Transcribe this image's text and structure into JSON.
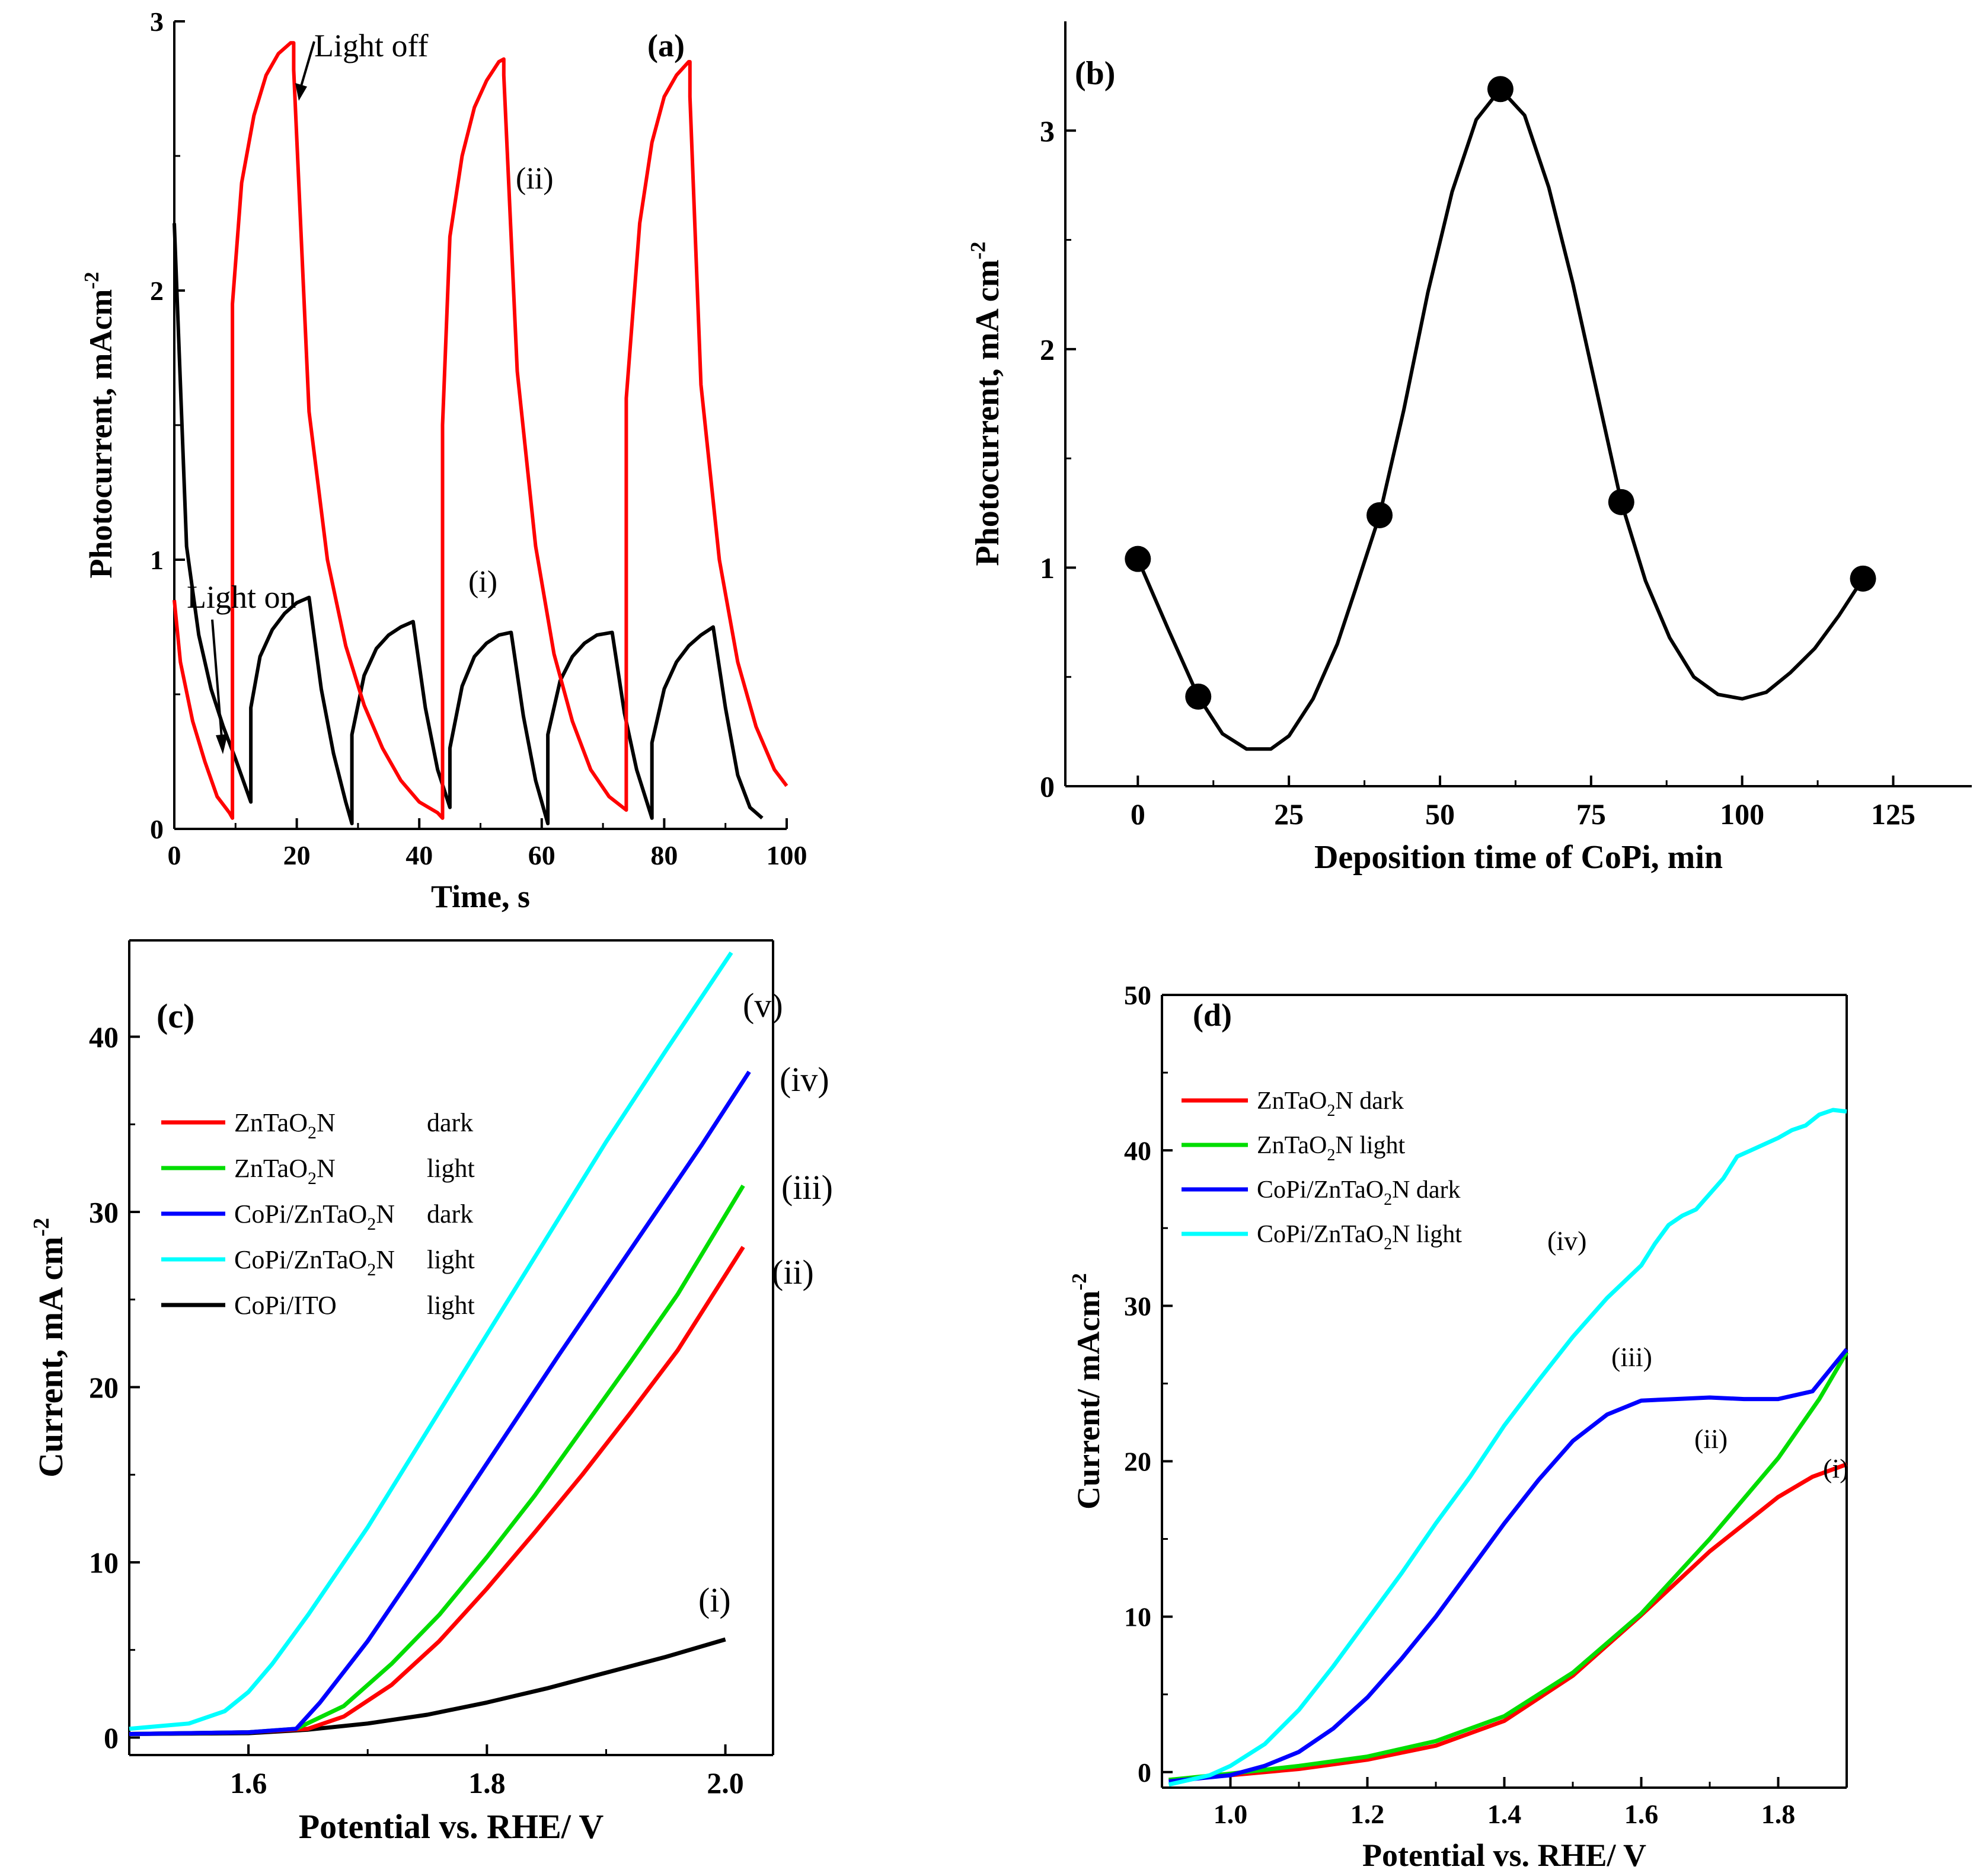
{
  "chart_data": [
    {
      "panel": "a",
      "type": "line",
      "panel_label": "(a)",
      "xlabel": "Time, s",
      "ylabel": "Photocurrent, mAcm",
      "ylabel_sup": "-2",
      "xlim": [
        0,
        100
      ],
      "ylim": [
        0,
        3
      ],
      "xticks": [
        0,
        20,
        40,
        60,
        80,
        100
      ],
      "yticks": [
        0,
        1,
        2,
        3
      ],
      "annotations": {
        "light_off": "Light off",
        "light_on": "Light on",
        "i": "(i)",
        "ii": "(ii)"
      },
      "series": [
        {
          "name": "(i)",
          "color": "#000000",
          "x": [
            0,
            2,
            4,
            6,
            8,
            10,
            12.5,
            12.5,
            14,
            16,
            18,
            20,
            22,
            22,
            24,
            26,
            28,
            29,
            29,
            31,
            33,
            35,
            37,
            39,
            39,
            41,
            43,
            45,
            45,
            47,
            49,
            51,
            53,
            55,
            55,
            57,
            59,
            61,
            61,
            63,
            65,
            67,
            69,
            71.5,
            71.5,
            73.5,
            75.5,
            78,
            78,
            80,
            82,
            84,
            86,
            88,
            88,
            90,
            92,
            94,
            96
          ],
          "y": [
            2.25,
            1.05,
            0.72,
            0.52,
            0.38,
            0.26,
            0.1,
            0.45,
            0.64,
            0.74,
            0.8,
            0.84,
            0.86,
            0.86,
            0.52,
            0.28,
            0.1,
            0.02,
            0.35,
            0.57,
            0.67,
            0.72,
            0.75,
            0.77,
            0.77,
            0.45,
            0.22,
            0.08,
            0.3,
            0.53,
            0.64,
            0.69,
            0.72,
            0.73,
            0.73,
            0.42,
            0.18,
            0.02,
            0.35,
            0.55,
            0.64,
            0.69,
            0.72,
            0.73,
            0.73,
            0.43,
            0.22,
            0.04,
            0.32,
            0.52,
            0.62,
            0.68,
            0.72,
            0.75,
            0.75,
            0.45,
            0.2,
            0.08,
            0.04
          ]
        },
        {
          "name": "(ii)",
          "color": "#ff0000",
          "x": [
            0,
            1,
            3,
            5,
            7,
            9,
            9.5,
            9.5,
            11,
            13,
            15,
            17,
            19,
            19.5,
            19.5,
            22,
            25,
            28,
            31,
            34,
            37,
            40,
            43,
            43.8,
            43.8,
            45,
            47,
            49,
            51,
            53,
            53.8,
            53.8,
            56,
            59,
            62,
            65,
            68,
            71,
            73.8,
            73.8,
            76,
            78,
            80,
            82,
            84,
            84.2,
            84.2,
            86,
            89,
            92,
            95,
            98,
            100
          ],
          "y": [
            0.85,
            0.62,
            0.4,
            0.25,
            0.12,
            0.06,
            0.04,
            1.95,
            2.4,
            2.65,
            2.8,
            2.88,
            2.92,
            2.92,
            2.82,
            1.55,
            1.0,
            0.68,
            0.46,
            0.3,
            0.18,
            0.1,
            0.06,
            0.04,
            1.5,
            2.2,
            2.5,
            2.68,
            2.78,
            2.85,
            2.86,
            2.8,
            1.7,
            1.05,
            0.65,
            0.4,
            0.22,
            0.12,
            0.07,
            1.6,
            2.25,
            2.55,
            2.72,
            2.8,
            2.85,
            2.85,
            2.72,
            1.65,
            1.0,
            0.62,
            0.38,
            0.22,
            0.16
          ]
        }
      ]
    },
    {
      "panel": "b",
      "type": "line",
      "panel_label": "(b)",
      "xlabel": "Deposition time of CoPi, min",
      "ylabel": "Photocurrent, mA cm",
      "ylabel_sup": "-2",
      "xlim": [
        -12,
        138
      ],
      "ylim": [
        0,
        3.5
      ],
      "xticks": [
        0,
        25,
        50,
        75,
        100,
        125
      ],
      "yticks": [
        0,
        1,
        2,
        3
      ],
      "points": {
        "x": [
          0,
          10,
          40,
          60,
          80,
          120
        ],
        "y": [
          1.04,
          0.41,
          1.24,
          3.19,
          1.3,
          0.95
        ]
      },
      "curve": {
        "x": [
          0,
          5,
          10,
          14,
          18,
          22,
          25,
          29,
          33,
          36,
          40,
          44,
          48,
          52,
          56,
          60,
          64,
          68,
          72,
          76,
          80,
          84,
          88,
          92,
          96,
          100,
          104,
          108,
          112,
          116,
          120
        ],
        "y": [
          1.04,
          0.72,
          0.41,
          0.24,
          0.17,
          0.17,
          0.23,
          0.4,
          0.65,
          0.9,
          1.24,
          1.72,
          2.26,
          2.72,
          3.05,
          3.19,
          3.07,
          2.74,
          2.3,
          1.8,
          1.3,
          0.94,
          0.68,
          0.5,
          0.42,
          0.4,
          0.43,
          0.52,
          0.63,
          0.78,
          0.95
        ]
      }
    },
    {
      "panel": "c",
      "type": "line",
      "panel_label": "(c)",
      "xlabel": "Potential vs. RHE/ V",
      "ylabel": "Current, mA cm",
      "ylabel_sup": "-2",
      "xlim": [
        1.5,
        2.04
      ],
      "ylim": [
        -1,
        45.5
      ],
      "xticks": [
        1.6,
        1.8,
        2.0
      ],
      "yticks": [
        0,
        10,
        20,
        30,
        40
      ],
      "curve_labels": [
        "(i)",
        "(ii)",
        "(iii)",
        "(iv)",
        "(v)"
      ],
      "legend": [
        {
          "name": "ZnTaO",
          "sub": "2",
          "tail": "N",
          "cond": "dark",
          "color": "#ff0000"
        },
        {
          "name": "ZnTaO",
          "sub": "2",
          "tail": "N",
          "cond": "light",
          "color": "#00dd00"
        },
        {
          "name": "CoPi/ZnTaO",
          "sub": "2",
          "tail": "N",
          "cond": "dark",
          "color": "#0000ff"
        },
        {
          "name": "CoPi/ZnTaO",
          "sub": "2",
          "tail": "N",
          "cond": "light",
          "color": "#00ffff"
        },
        {
          "name": "CoPi/ITO",
          "sub": "",
          "tail": "",
          "cond": "light",
          "color": "#000000"
        }
      ],
      "series": [
        {
          "name": "CoPi/ITO light",
          "color": "#000000",
          "x": [
            1.5,
            1.6,
            1.65,
            1.7,
            1.75,
            1.8,
            1.85,
            1.9,
            1.95,
            2.0
          ],
          "y": [
            0.2,
            0.25,
            0.45,
            0.8,
            1.3,
            2.0,
            2.8,
            3.7,
            4.6,
            5.6
          ]
        },
        {
          "name": "ZnTaO2N dark",
          "color": "#ff0000",
          "x": [
            1.5,
            1.6,
            1.65,
            1.68,
            1.72,
            1.76,
            1.8,
            1.84,
            1.88,
            1.92,
            1.96,
            2.015
          ],
          "y": [
            0.2,
            0.3,
            0.5,
            1.2,
            3.0,
            5.5,
            8.5,
            11.7,
            15.0,
            18.5,
            22.1,
            28.0
          ]
        },
        {
          "name": "ZnTaO2N light",
          "color": "#00dd00",
          "x": [
            1.5,
            1.6,
            1.64,
            1.68,
            1.72,
            1.76,
            1.8,
            1.84,
            1.88,
            1.92,
            1.96,
            2.015
          ],
          "y": [
            0.2,
            0.3,
            0.5,
            1.8,
            4.2,
            7.0,
            10.3,
            13.8,
            17.6,
            21.4,
            25.3,
            31.5
          ]
        },
        {
          "name": "CoPi/ZnTaO2N dark",
          "color": "#0000ff",
          "x": [
            1.5,
            1.6,
            1.64,
            1.66,
            1.7,
            1.74,
            1.78,
            1.82,
            1.86,
            1.9,
            1.94,
            1.98,
            2.02
          ],
          "y": [
            0.2,
            0.3,
            0.5,
            2.0,
            5.5,
            9.5,
            13.6,
            17.7,
            21.8,
            25.8,
            29.8,
            33.8,
            38.0
          ]
        },
        {
          "name": "CoPi/ZnTaO2N light",
          "color": "#00ffff",
          "x": [
            1.5,
            1.55,
            1.58,
            1.6,
            1.62,
            1.65,
            1.7,
            1.75,
            1.8,
            1.85,
            1.9,
            1.95,
            2.005
          ],
          "y": [
            0.5,
            0.8,
            1.5,
            2.6,
            4.2,
            7.0,
            12.0,
            17.5,
            23.0,
            28.5,
            34.0,
            39.2,
            44.8
          ]
        }
      ]
    },
    {
      "panel": "d",
      "type": "line",
      "panel_label": "(d)",
      "xlabel": "Potential vs. RHE/ V",
      "ylabel": "Current/ mAcm",
      "ylabel_sup": "-2",
      "xlim": [
        0.9,
        1.9
      ],
      "ylim": [
        -1,
        50
      ],
      "xticks": [
        1.0,
        1.2,
        1.4,
        1.6,
        1.8
      ],
      "yticks": [
        0,
        10,
        20,
        30,
        40,
        50
      ],
      "curve_labels": [
        "(i)",
        "(ii)",
        "(iii)",
        "(iv)"
      ],
      "legend": [
        {
          "name": "ZnTaO",
          "sub": "2",
          "tail": "N dark",
          "color": "#ff0000"
        },
        {
          "name": "ZnTaO",
          "sub": "2",
          "tail": "N light",
          "color": "#00dd00"
        },
        {
          "name": "CoPi/ZnTaO",
          "sub": "2",
          "tail": "N dark",
          "color": "#0000ff"
        },
        {
          "name": "CoPi/ZnTaO",
          "sub": "2",
          "tail": "N light",
          "color": "#00ffff"
        }
      ],
      "series": [
        {
          "name": "ZnTaO2N dark",
          "color": "#ff0000",
          "x": [
            0.91,
            1.0,
            1.1,
            1.2,
            1.3,
            1.4,
            1.5,
            1.6,
            1.7,
            1.8,
            1.85,
            1.9
          ],
          "y": [
            -0.5,
            -0.2,
            0.2,
            0.8,
            1.7,
            3.3,
            6.2,
            10.1,
            14.2,
            17.7,
            19.0,
            19.8
          ]
        },
        {
          "name": "ZnTaO2N light",
          "color": "#00dd00",
          "x": [
            0.91,
            1.0,
            1.1,
            1.2,
            1.3,
            1.4,
            1.5,
            1.6,
            1.7,
            1.8,
            1.86,
            1.9
          ],
          "y": [
            -0.5,
            -0.1,
            0.4,
            1.0,
            2.0,
            3.6,
            6.4,
            10.2,
            15.0,
            20.2,
            24.0,
            27.0
          ]
        },
        {
          "name": "CoPi/ZnTaO2N dark",
          "color": "#0000ff",
          "x": [
            0.91,
            1.0,
            1.05,
            1.1,
            1.15,
            1.2,
            1.25,
            1.3,
            1.35,
            1.4,
            1.45,
            1.5,
            1.55,
            1.6,
            1.65,
            1.7,
            1.75,
            1.8,
            1.85,
            1.9
          ],
          "y": [
            -0.6,
            -0.2,
            0.4,
            1.3,
            2.8,
            4.8,
            7.3,
            10.0,
            13.0,
            16.0,
            18.8,
            21.3,
            23.0,
            23.9,
            24.0,
            24.1,
            24.0,
            24.0,
            24.5,
            27.2
          ]
        },
        {
          "name": "CoPi/ZnTaO2N light",
          "color": "#00ffff",
          "x": [
            0.91,
            0.97,
            1.0,
            1.05,
            1.1,
            1.15,
            1.2,
            1.25,
            1.3,
            1.35,
            1.4,
            1.45,
            1.5,
            1.55,
            1.6,
            1.62,
            1.64,
            1.66,
            1.68,
            1.7,
            1.72,
            1.74,
            1.76,
            1.78,
            1.8,
            1.82,
            1.84,
            1.86,
            1.88,
            1.9
          ],
          "y": [
            -0.8,
            -0.2,
            0.4,
            1.8,
            4.0,
            6.8,
            9.8,
            12.8,
            16.0,
            19.0,
            22.3,
            25.2,
            28.0,
            30.5,
            32.6,
            34.0,
            35.2,
            35.8,
            36.2,
            37.2,
            38.2,
            39.6,
            40.0,
            40.4,
            40.8,
            41.3,
            41.6,
            42.3,
            42.6,
            42.5
          ]
        }
      ]
    }
  ]
}
